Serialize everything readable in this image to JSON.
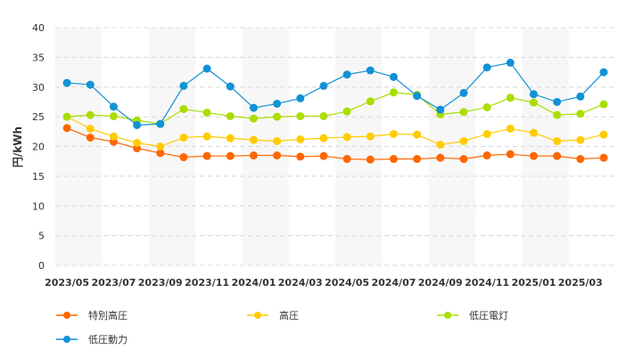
{
  "chart_data": {
    "type": "line",
    "title": "",
    "xlabel": "",
    "ylabel": "円/kWh",
    "ylim": [
      0,
      40
    ],
    "yticks": [
      0,
      5,
      10,
      15,
      20,
      25,
      30,
      35,
      40
    ],
    "grid": "horizontal dashed",
    "legend_placement": "bottom",
    "x": [
      "2023/05",
      "2023/06",
      "2023/07",
      "2023/08",
      "2023/09",
      "2023/10",
      "2023/11",
      "2023/12",
      "2024/01",
      "2024/02",
      "2024/03",
      "2024/04",
      "2024/05",
      "2024/06",
      "2024/07",
      "2024/08",
      "2024/09",
      "2024/10",
      "2024/11",
      "2024/12",
      "2025/01",
      "2025/02",
      "2025/03",
      "2025/04"
    ],
    "xtick_labels": [
      "2023/05",
      "2023/07",
      "2023/09",
      "2023/11",
      "2024/01",
      "2024/03",
      "2024/05",
      "2024/07",
      "2024/09",
      "2024/11",
      "2025/01",
      "2025/03"
    ],
    "series": [
      {
        "name": "特別高圧",
        "color": "#ff6600",
        "values": [
          23.1,
          21.5,
          20.8,
          19.7,
          18.9,
          18.2,
          18.4,
          18.4,
          18.5,
          18.5,
          18.3,
          18.4,
          17.9,
          17.8,
          17.9,
          17.9,
          18.1,
          17.9,
          18.5,
          18.7,
          18.4,
          18.4,
          17.9,
          18.1
        ]
      },
      {
        "name": "高圧",
        "color": "#ffcc00",
        "values": [
          25.0,
          23.0,
          21.7,
          20.6,
          20.0,
          21.5,
          21.7,
          21.4,
          21.1,
          20.9,
          21.2,
          21.4,
          21.6,
          21.7,
          22.1,
          22.0,
          20.3,
          20.9,
          22.1,
          23.0,
          22.3,
          20.9,
          21.1,
          22.0
        ]
      },
      {
        "name": "低圧電灯",
        "color": "#aadd00",
        "values": [
          25.0,
          25.3,
          25.1,
          24.4,
          23.8,
          26.3,
          25.7,
          25.1,
          24.7,
          25.0,
          25.1,
          25.1,
          25.9,
          27.6,
          29.1,
          28.7,
          25.4,
          25.8,
          26.6,
          28.2,
          27.4,
          25.3,
          25.5,
          27.1
        ]
      },
      {
        "name": "低圧動力",
        "color": "#1192d4",
        "values": [
          30.7,
          30.4,
          26.7,
          23.6,
          23.8,
          30.2,
          33.1,
          30.1,
          26.5,
          27.2,
          28.1,
          30.2,
          32.1,
          32.8,
          31.7,
          28.5,
          26.2,
          29.0,
          33.3,
          34.1,
          28.8,
          27.5,
          28.4,
          32.5
        ]
      }
    ]
  }
}
